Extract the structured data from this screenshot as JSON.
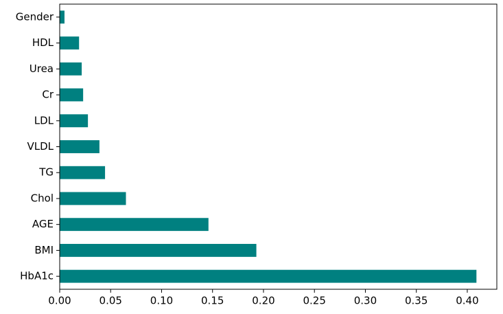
{
  "chart_data": {
    "type": "barh",
    "categories": [
      "HbA1c",
      "BMI",
      "AGE",
      "Chol",
      "TG",
      "VLDL",
      "LDL",
      "Cr",
      "Urea",
      "HDL",
      "Gender"
    ],
    "values": [
      0.409,
      0.193,
      0.146,
      0.065,
      0.0445,
      0.039,
      0.0277,
      0.023,
      0.0216,
      0.019,
      0.0047
    ],
    "color": "#008080",
    "xlim": [
      0,
      0.429
    ],
    "xticks": [
      {
        "value": 0,
        "label": "0.00"
      },
      0.05,
      {
        "value": 0.1,
        "label": "0.10"
      },
      0.15,
      {
        "value": 0.2,
        "label": "0.20"
      },
      0.25,
      {
        "value": 0.3,
        "label": "0.30"
      },
      0.35,
      {
        "value": 0.4,
        "label": "0.40"
      }
    ],
    "grid": false
  }
}
